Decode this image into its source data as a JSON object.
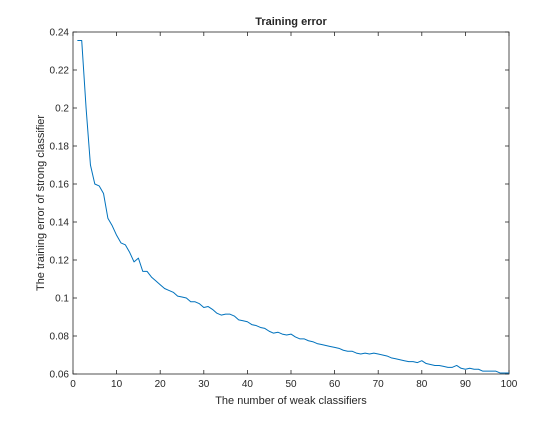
{
  "chart_data": {
    "type": "line",
    "title": "Training error",
    "xlabel": "The number of weak classifiers",
    "ylabel": "The training error of strong classifier",
    "xlim": [
      0,
      100
    ],
    "ylim": [
      0.06,
      0.24
    ],
    "xticks": [
      0,
      10,
      20,
      30,
      40,
      50,
      60,
      70,
      80,
      90,
      100
    ],
    "yticks": [
      0.06,
      0.08,
      0.1,
      0.12,
      0.14,
      0.16,
      0.18,
      0.2,
      0.22,
      0.24
    ],
    "grid": false,
    "line_color": "#0072BD",
    "x": [
      1,
      2,
      3,
      4,
      5,
      6,
      7,
      8,
      9,
      10,
      11,
      12,
      13,
      14,
      15,
      16,
      17,
      18,
      19,
      20,
      21,
      22,
      23,
      24,
      25,
      26,
      27,
      28,
      29,
      30,
      31,
      32,
      33,
      34,
      35,
      36,
      37,
      38,
      39,
      40,
      41,
      42,
      43,
      44,
      45,
      46,
      47,
      48,
      49,
      50,
      51,
      52,
      53,
      54,
      55,
      56,
      57,
      58,
      59,
      60,
      61,
      62,
      63,
      64,
      65,
      66,
      67,
      68,
      69,
      70,
      71,
      72,
      73,
      74,
      75,
      76,
      77,
      78,
      79,
      80,
      81,
      82,
      83,
      84,
      85,
      86,
      87,
      88,
      89,
      90,
      91,
      92,
      93,
      94,
      95,
      96,
      97,
      98,
      99,
      100
    ],
    "values": [
      0.2355,
      0.2355,
      0.2,
      0.17,
      0.16,
      0.159,
      0.155,
      0.142,
      0.138,
      0.133,
      0.129,
      0.128,
      0.124,
      0.119,
      0.121,
      0.114,
      0.114,
      0.111,
      0.109,
      0.107,
      0.105,
      0.104,
      0.103,
      0.101,
      0.1005,
      0.1,
      0.098,
      0.098,
      0.097,
      0.095,
      0.0955,
      0.094,
      0.092,
      0.091,
      0.0915,
      0.0915,
      0.0905,
      0.0885,
      0.088,
      0.0875,
      0.086,
      0.0855,
      0.0845,
      0.084,
      0.0825,
      0.0815,
      0.082,
      0.081,
      0.0805,
      0.081,
      0.0795,
      0.0785,
      0.0785,
      0.0775,
      0.077,
      0.076,
      0.0755,
      0.075,
      0.0745,
      0.074,
      0.0735,
      0.0725,
      0.072,
      0.072,
      0.071,
      0.0705,
      0.071,
      0.0705,
      0.071,
      0.0705,
      0.07,
      0.0695,
      0.0685,
      0.068,
      0.0675,
      0.067,
      0.0665,
      0.0665,
      0.066,
      0.067,
      0.0655,
      0.065,
      0.0645,
      0.0645,
      0.064,
      0.0635,
      0.0635,
      0.0645,
      0.063,
      0.0625,
      0.063,
      0.0625,
      0.0625,
      0.0615,
      0.0615,
      0.0615,
      0.0615,
      0.0605,
      0.0605,
      0.0605
    ]
  }
}
